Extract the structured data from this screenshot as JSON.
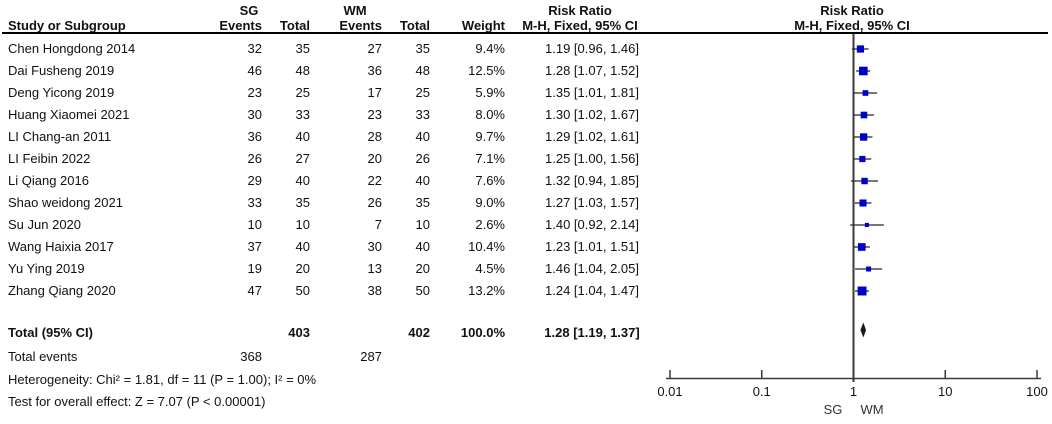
{
  "header": {
    "group1": "SG",
    "group2": "WM",
    "col_study": "Study or Subgroup",
    "col_events": "Events",
    "col_total": "Total",
    "col_weight": "Weight",
    "stat_title_left": "Risk Ratio",
    "stat_sub_left": "M-H, Fixed, 95% CI",
    "stat_title_right": "Risk Ratio",
    "stat_sub_right": "M-H, Fixed, 95% CI"
  },
  "studies": [
    {
      "name": "Chen Hongdong 2014",
      "events_sg": "32",
      "total_sg": "35",
      "events_wm": "27",
      "total_wm": "35",
      "weight": "9.4%",
      "ci_text": "1.19 [0.96, 1.46]"
    },
    {
      "name": "Dai Fusheng 2019",
      "events_sg": "46",
      "total_sg": "48",
      "events_wm": "36",
      "total_wm": "48",
      "weight": "12.5%",
      "ci_text": "1.28 [1.07, 1.52]"
    },
    {
      "name": "Deng Yicong 2019",
      "events_sg": "23",
      "total_sg": "25",
      "events_wm": "17",
      "total_wm": "25",
      "weight": "5.9%",
      "ci_text": "1.35 [1.01, 1.81]"
    },
    {
      "name": "Huang Xiaomei 2021",
      "events_sg": "30",
      "total_sg": "33",
      "events_wm": "23",
      "total_wm": "33",
      "weight": "8.0%",
      "ci_text": "1.30 [1.02, 1.67]"
    },
    {
      "name": "LI Chang-an 2011",
      "events_sg": "36",
      "total_sg": "40",
      "events_wm": "28",
      "total_wm": "40",
      "weight": "9.7%",
      "ci_text": "1.29 [1.02, 1.61]"
    },
    {
      "name": "LI Feibin 2022",
      "events_sg": "26",
      "total_sg": "27",
      "events_wm": "20",
      "total_wm": "26",
      "weight": "7.1%",
      "ci_text": "1.25 [1.00, 1.56]"
    },
    {
      "name": "Li Qiang 2016",
      "events_sg": "29",
      "total_sg": "40",
      "events_wm": "22",
      "total_wm": "40",
      "weight": "7.6%",
      "ci_text": "1.32 [0.94, 1.85]"
    },
    {
      "name": "Shao weidong 2021",
      "events_sg": "33",
      "total_sg": "35",
      "events_wm": "26",
      "total_wm": "35",
      "weight": "9.0%",
      "ci_text": "1.27 [1.03, 1.57]"
    },
    {
      "name": "Su Jun 2020",
      "events_sg": "10",
      "total_sg": "10",
      "events_wm": "7",
      "total_wm": "10",
      "weight": "2.6%",
      "ci_text": "1.40 [0.92, 2.14]"
    },
    {
      "name": "Wang Haixia 2017",
      "events_sg": "37",
      "total_sg": "40",
      "events_wm": "30",
      "total_wm": "40",
      "weight": "10.4%",
      "ci_text": "1.23 [1.01, 1.51]"
    },
    {
      "name": "Yu Ying 2019",
      "events_sg": "19",
      "total_sg": "20",
      "events_wm": "13",
      "total_wm": "20",
      "weight": "4.5%",
      "ci_text": "1.46 [1.04, 2.05]"
    },
    {
      "name": "Zhang Qiang 2020",
      "events_sg": "47",
      "total_sg": "50",
      "events_wm": "38",
      "total_wm": "50",
      "weight": "13.2%",
      "ci_text": "1.24 [1.04, 1.47]"
    }
  ],
  "totals": {
    "label": "Total (95% CI)",
    "total_sg": "403",
    "total_wm": "402",
    "weight": "100.0%",
    "ci_text": "1.28 [1.19, 1.37]"
  },
  "total_events": {
    "label": "Total events",
    "sg": "368",
    "wm": "287"
  },
  "heterogeneity": "Heterogeneity: Chi² = 1.81, df = 11 (P = 1.00); I² = 0%",
  "overall_effect": "Test for overall effect: Z = 7.07 (P < 0.00001)",
  "chart_data": {
    "type": "forest",
    "effect_measure": "Risk Ratio (M-H, Fixed, 95% CI)",
    "x_axis": {
      "scale": "log",
      "ticks": [
        0.01,
        0.1,
        1,
        10,
        100
      ],
      "tick_labels": [
        "0.01",
        "0.1",
        "1",
        "10",
        "100"
      ]
    },
    "favours_left": "SG",
    "favours_right": "WM",
    "points": [
      {
        "study": "Chen Hongdong 2014",
        "rr": 1.19,
        "ci_low": 0.96,
        "ci_high": 1.46,
        "weight_pct": 9.4
      },
      {
        "study": "Dai Fusheng 2019",
        "rr": 1.28,
        "ci_low": 1.07,
        "ci_high": 1.52,
        "weight_pct": 12.5
      },
      {
        "study": "Deng Yicong 2019",
        "rr": 1.35,
        "ci_low": 1.01,
        "ci_high": 1.81,
        "weight_pct": 5.9
      },
      {
        "study": "Huang Xiaomei 2021",
        "rr": 1.3,
        "ci_low": 1.02,
        "ci_high": 1.67,
        "weight_pct": 8.0
      },
      {
        "study": "LI Chang-an 2011",
        "rr": 1.29,
        "ci_low": 1.02,
        "ci_high": 1.61,
        "weight_pct": 9.7
      },
      {
        "study": "LI Feibin 2022",
        "rr": 1.25,
        "ci_low": 1.0,
        "ci_high": 1.56,
        "weight_pct": 7.1
      },
      {
        "study": "Li Qiang 2016",
        "rr": 1.32,
        "ci_low": 0.94,
        "ci_high": 1.85,
        "weight_pct": 7.6
      },
      {
        "study": "Shao weidong 2021",
        "rr": 1.27,
        "ci_low": 1.03,
        "ci_high": 1.57,
        "weight_pct": 9.0
      },
      {
        "study": "Su Jun 2020",
        "rr": 1.4,
        "ci_low": 0.92,
        "ci_high": 2.14,
        "weight_pct": 2.6
      },
      {
        "study": "Wang Haixia 2017",
        "rr": 1.23,
        "ci_low": 1.01,
        "ci_high": 1.51,
        "weight_pct": 10.4
      },
      {
        "study": "Yu Ying 2019",
        "rr": 1.46,
        "ci_low": 1.04,
        "ci_high": 2.05,
        "weight_pct": 4.5
      },
      {
        "study": "Zhang Qiang 2020",
        "rr": 1.24,
        "ci_low": 1.04,
        "ci_high": 1.47,
        "weight_pct": 13.2
      }
    ],
    "summary": {
      "label": "Total (95% CI)",
      "rr": 1.28,
      "ci_low": 1.19,
      "ci_high": 1.37
    },
    "marker_color": "#0000cc",
    "line_color": "#3a3a3a",
    "diamond_color": "#1a1a1a"
  }
}
